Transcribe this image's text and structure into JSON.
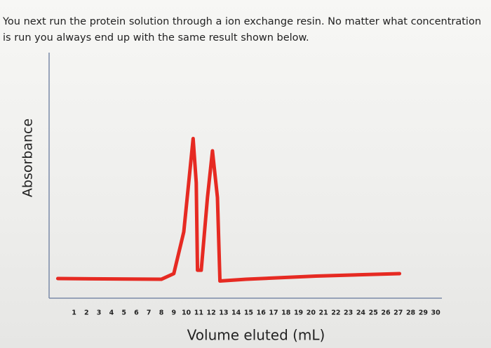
{
  "chart_data": {
    "type": "line",
    "title": "You next run the protein solution through a ion exchange resin. No matter what concentration is run you always end up with the same result shown below.",
    "x_label": "Volume eluted (mL)",
    "y_label": "Absorbance",
    "x": [
      -0.3,
      8.0,
      9.0,
      9.8,
      10.55,
      10.8,
      10.9,
      11.2,
      11.7,
      12.1,
      12.5,
      12.7,
      14.8,
      20.4,
      27.1
    ],
    "series": [
      {
        "name": "Absorbance",
        "color": "#e62a22",
        "values": [
          8,
          7.7,
          10,
          27,
          65,
          47,
          11.4,
          11.4,
          41,
          60,
          41,
          7,
          7.7,
          9,
          10
        ]
      }
    ],
    "xlim": [
      -1,
      30.5
    ],
    "ylim": [
      0,
      100
    ],
    "xticks": [
      1,
      2,
      3,
      4,
      5,
      6,
      7,
      8,
      9,
      10,
      11,
      12,
      13,
      14,
      15,
      16,
      17,
      18,
      19,
      20,
      21,
      22,
      23,
      24,
      25,
      26,
      27,
      28,
      29,
      30
    ],
    "grid": false
  }
}
